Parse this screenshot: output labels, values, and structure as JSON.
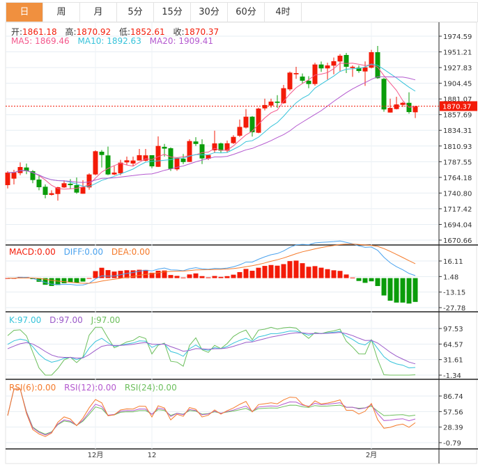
{
  "tabs": [
    {
      "label": "日",
      "active": true
    },
    {
      "label": "周"
    },
    {
      "label": "月"
    },
    {
      "label": "5分"
    },
    {
      "label": "15分"
    },
    {
      "label": "30分"
    },
    {
      "label": "60分"
    },
    {
      "label": "4时"
    }
  ],
  "legend": {
    "open_label": "开:",
    "open": "1861.18",
    "high_label": "高:",
    "high": "1870.92",
    "low_label": "低:",
    "low": "1852.61",
    "close_label": "收:",
    "close": "1870.37",
    "ma5": "MA5: 1869.46",
    "ma10": "MA10: 1892.63",
    "ma20": "MA20: 1909.41",
    "macd": "MACD:0.00",
    "diff": "DIFF:0.00",
    "dea": "DEA:0.00",
    "k": "K:97.00",
    "d": "D:97.00",
    "j": "J:97.00",
    "rsi6": "RSI(6):0.00",
    "rsi12": "RSI(12):0.00",
    "rsi24": "RSI(24):0.00"
  },
  "colors": {
    "up": "#f31b08",
    "down": "#0a9c0a",
    "ma5": "#f4578b",
    "ma10": "#36c3da",
    "ma20": "#b459cf",
    "diff": "#4aa2ee",
    "dea": "#f57a2a",
    "k": "#36c3da",
    "d": "#9a59c9",
    "j": "#6cbf5c",
    "rsi6": "#f57a2a",
    "rsi12": "#b459cf",
    "rsi24": "#6cbf5c",
    "tab_active": "#f0903f"
  },
  "chart_data": {
    "type": "candlestick",
    "ohlc_fields": [
      "open",
      "high",
      "low",
      "close"
    ],
    "candles": [
      [
        1752.6,
        1773.4,
        1747.7,
        1771.3
      ],
      [
        1762.3,
        1775.4,
        1753.6,
        1771.6
      ],
      [
        1770.6,
        1786.5,
        1767.4,
        1779.6
      ],
      [
        1778.9,
        1784.8,
        1769.0,
        1773.7
      ],
      [
        1773.4,
        1775.1,
        1755.4,
        1760.2
      ],
      [
        1760.9,
        1767.4,
        1745.0,
        1749.5
      ],
      [
        1750.2,
        1753.6,
        1732.9,
        1738.1
      ],
      [
        1738.1,
        1745.0,
        1737.1,
        1740.5
      ],
      [
        1739.4,
        1750.2,
        1729.5,
        1749.5
      ],
      [
        1749.2,
        1759.9,
        1748.5,
        1755.4
      ],
      [
        1754.7,
        1761.6,
        1746.7,
        1752.6
      ],
      [
        1752.6,
        1764.0,
        1739.8,
        1741.5
      ],
      [
        1739.8,
        1759.9,
        1739.8,
        1749.8
      ],
      [
        1749.2,
        1770.2,
        1745.7,
        1768.5
      ],
      [
        1768.5,
        1804.5,
        1767.4,
        1803.1
      ],
      [
        1802.4,
        1804.8,
        1778.9,
        1797.5
      ],
      [
        1796.9,
        1810.0,
        1767.4,
        1768.5
      ],
      [
        1768.5,
        1781.0,
        1767.4,
        1771.3
      ],
      [
        1770.2,
        1790.4,
        1767.4,
        1786.1
      ],
      [
        1786.5,
        1795.1,
        1782.4,
        1789.6
      ],
      [
        1784.8,
        1795.1,
        1781.0,
        1789.3
      ],
      [
        1789.3,
        1806.5,
        1789.3,
        1797.2
      ],
      [
        1789.0,
        1806.5,
        1788.0,
        1797.0
      ],
      [
        1797.2,
        1797.2,
        1777.8,
        1780.6
      ],
      [
        1779.9,
        1825.2,
        1779.6,
        1811.0
      ],
      [
        1809.7,
        1814.1,
        1795.1,
        1807.0
      ],
      [
        1807.6,
        1808.9,
        1773.7,
        1776.8
      ],
      [
        1776.2,
        1794.0,
        1774.0,
        1793.1
      ],
      [
        1792.0,
        1799.0,
        1784.0,
        1787.0
      ],
      [
        1787.2,
        1821.0,
        1787.0,
        1818.3
      ],
      [
        1817.7,
        1824.0,
        1811.0,
        1814.0
      ],
      [
        1813.5,
        1821.0,
        1784.0,
        1792.4
      ],
      [
        1792.0,
        1797.5,
        1790.0,
        1797.5
      ],
      [
        1804.5,
        1833.8,
        1800.3,
        1814.8
      ],
      [
        1814.8,
        1816.0,
        1801.0,
        1804.0
      ],
      [
        1804.0,
        1819.0,
        1801.0,
        1815.0
      ],
      [
        1815.2,
        1827.0,
        1814.0,
        1824.5
      ],
      [
        1826.2,
        1850.4,
        1824.5,
        1839.4
      ],
      [
        1838.4,
        1866.0,
        1837.0,
        1854.6
      ],
      [
        1854.6,
        1855.6,
        1825.0,
        1831.4
      ],
      [
        1830.7,
        1868.0,
        1830.0,
        1866.7
      ],
      [
        1867.0,
        1881.5,
        1864.0,
        1872.0
      ],
      [
        1871.2,
        1881.5,
        1868.0,
        1877.1
      ],
      [
        1877.1,
        1886.7,
        1867.7,
        1875.3
      ],
      [
        1874.7,
        1902.0,
        1874.0,
        1897.1
      ],
      [
        1895.4,
        1922.0,
        1893.0,
        1920.3
      ],
      [
        1917.8,
        1928.9,
        1911.0,
        1919.6
      ],
      [
        1914.4,
        1919.0,
        1904.0,
        1908.2
      ],
      [
        1908.2,
        1915.0,
        1897.0,
        1903.3
      ],
      [
        1903.3,
        1935.0,
        1901.0,
        1932.4
      ],
      [
        1932.4,
        1936.9,
        1921.4,
        1926.6
      ],
      [
        1926.6,
        1935.0,
        1910.0,
        1931.0
      ],
      [
        1930.7,
        1942.8,
        1917.8,
        1937.3
      ],
      [
        1936.9,
        1948.0,
        1922.0,
        1945.5
      ],
      [
        1946.6,
        1949.7,
        1919.6,
        1929.0
      ],
      [
        1927.2,
        1931.0,
        1914.0,
        1929.0
      ],
      [
        1927.6,
        1931.0,
        1920.0,
        1922.7
      ],
      [
        1922.0,
        1937.0,
        1900.6,
        1928.2
      ],
      [
        1927.6,
        1954.2,
        1926.6,
        1950.7
      ],
      [
        1950.7,
        1960.1,
        1911.0,
        1912.0
      ],
      [
        1911.0,
        1912.6,
        1862.0,
        1865.4
      ],
      [
        1860.8,
        1881.5,
        1860.8,
        1867.7
      ],
      [
        1866.0,
        1884.3,
        1865.4,
        1872.9
      ],
      [
        1872.2,
        1876.5,
        1869.0,
        1875.3
      ],
      [
        1875.3,
        1890.9,
        1859.1,
        1861.5
      ],
      [
        1861.18,
        1870.92,
        1852.61,
        1870.37
      ]
    ],
    "last_price": "1870.37",
    "x_labels": [
      {
        "index": 14,
        "text": "12月"
      },
      {
        "index": 23,
        "text": "12"
      },
      {
        "index": 58,
        "text": "2月"
      }
    ],
    "main_axis": {
      "ticks": [
        "1974.59",
        "1951.21",
        "1927.83",
        "1904.45",
        "1881.07",
        "1857.69",
        "1834.31",
        "1810.93",
        "1787.55",
        "1764.18",
        "1740.80",
        "1717.42",
        "1694.04",
        "1670.66"
      ]
    },
    "macd_axis": {
      "ticks": [
        "16.11",
        "1.48",
        "-13.15",
        "-27.78"
      ]
    },
    "kdj_axis": {
      "ticks": [
        "97.53",
        "64.57",
        "31.61",
        "-1.34"
      ]
    },
    "rsi_axis": {
      "ticks": [
        "86.74",
        "57.56",
        "28.39",
        "-0.79"
      ]
    },
    "indicators": {
      "ma": [
        5,
        10,
        20
      ],
      "macd": [
        12,
        26,
        9
      ],
      "kdj": [
        9,
        3,
        3
      ],
      "rsi": [
        6,
        12,
        24
      ]
    }
  }
}
